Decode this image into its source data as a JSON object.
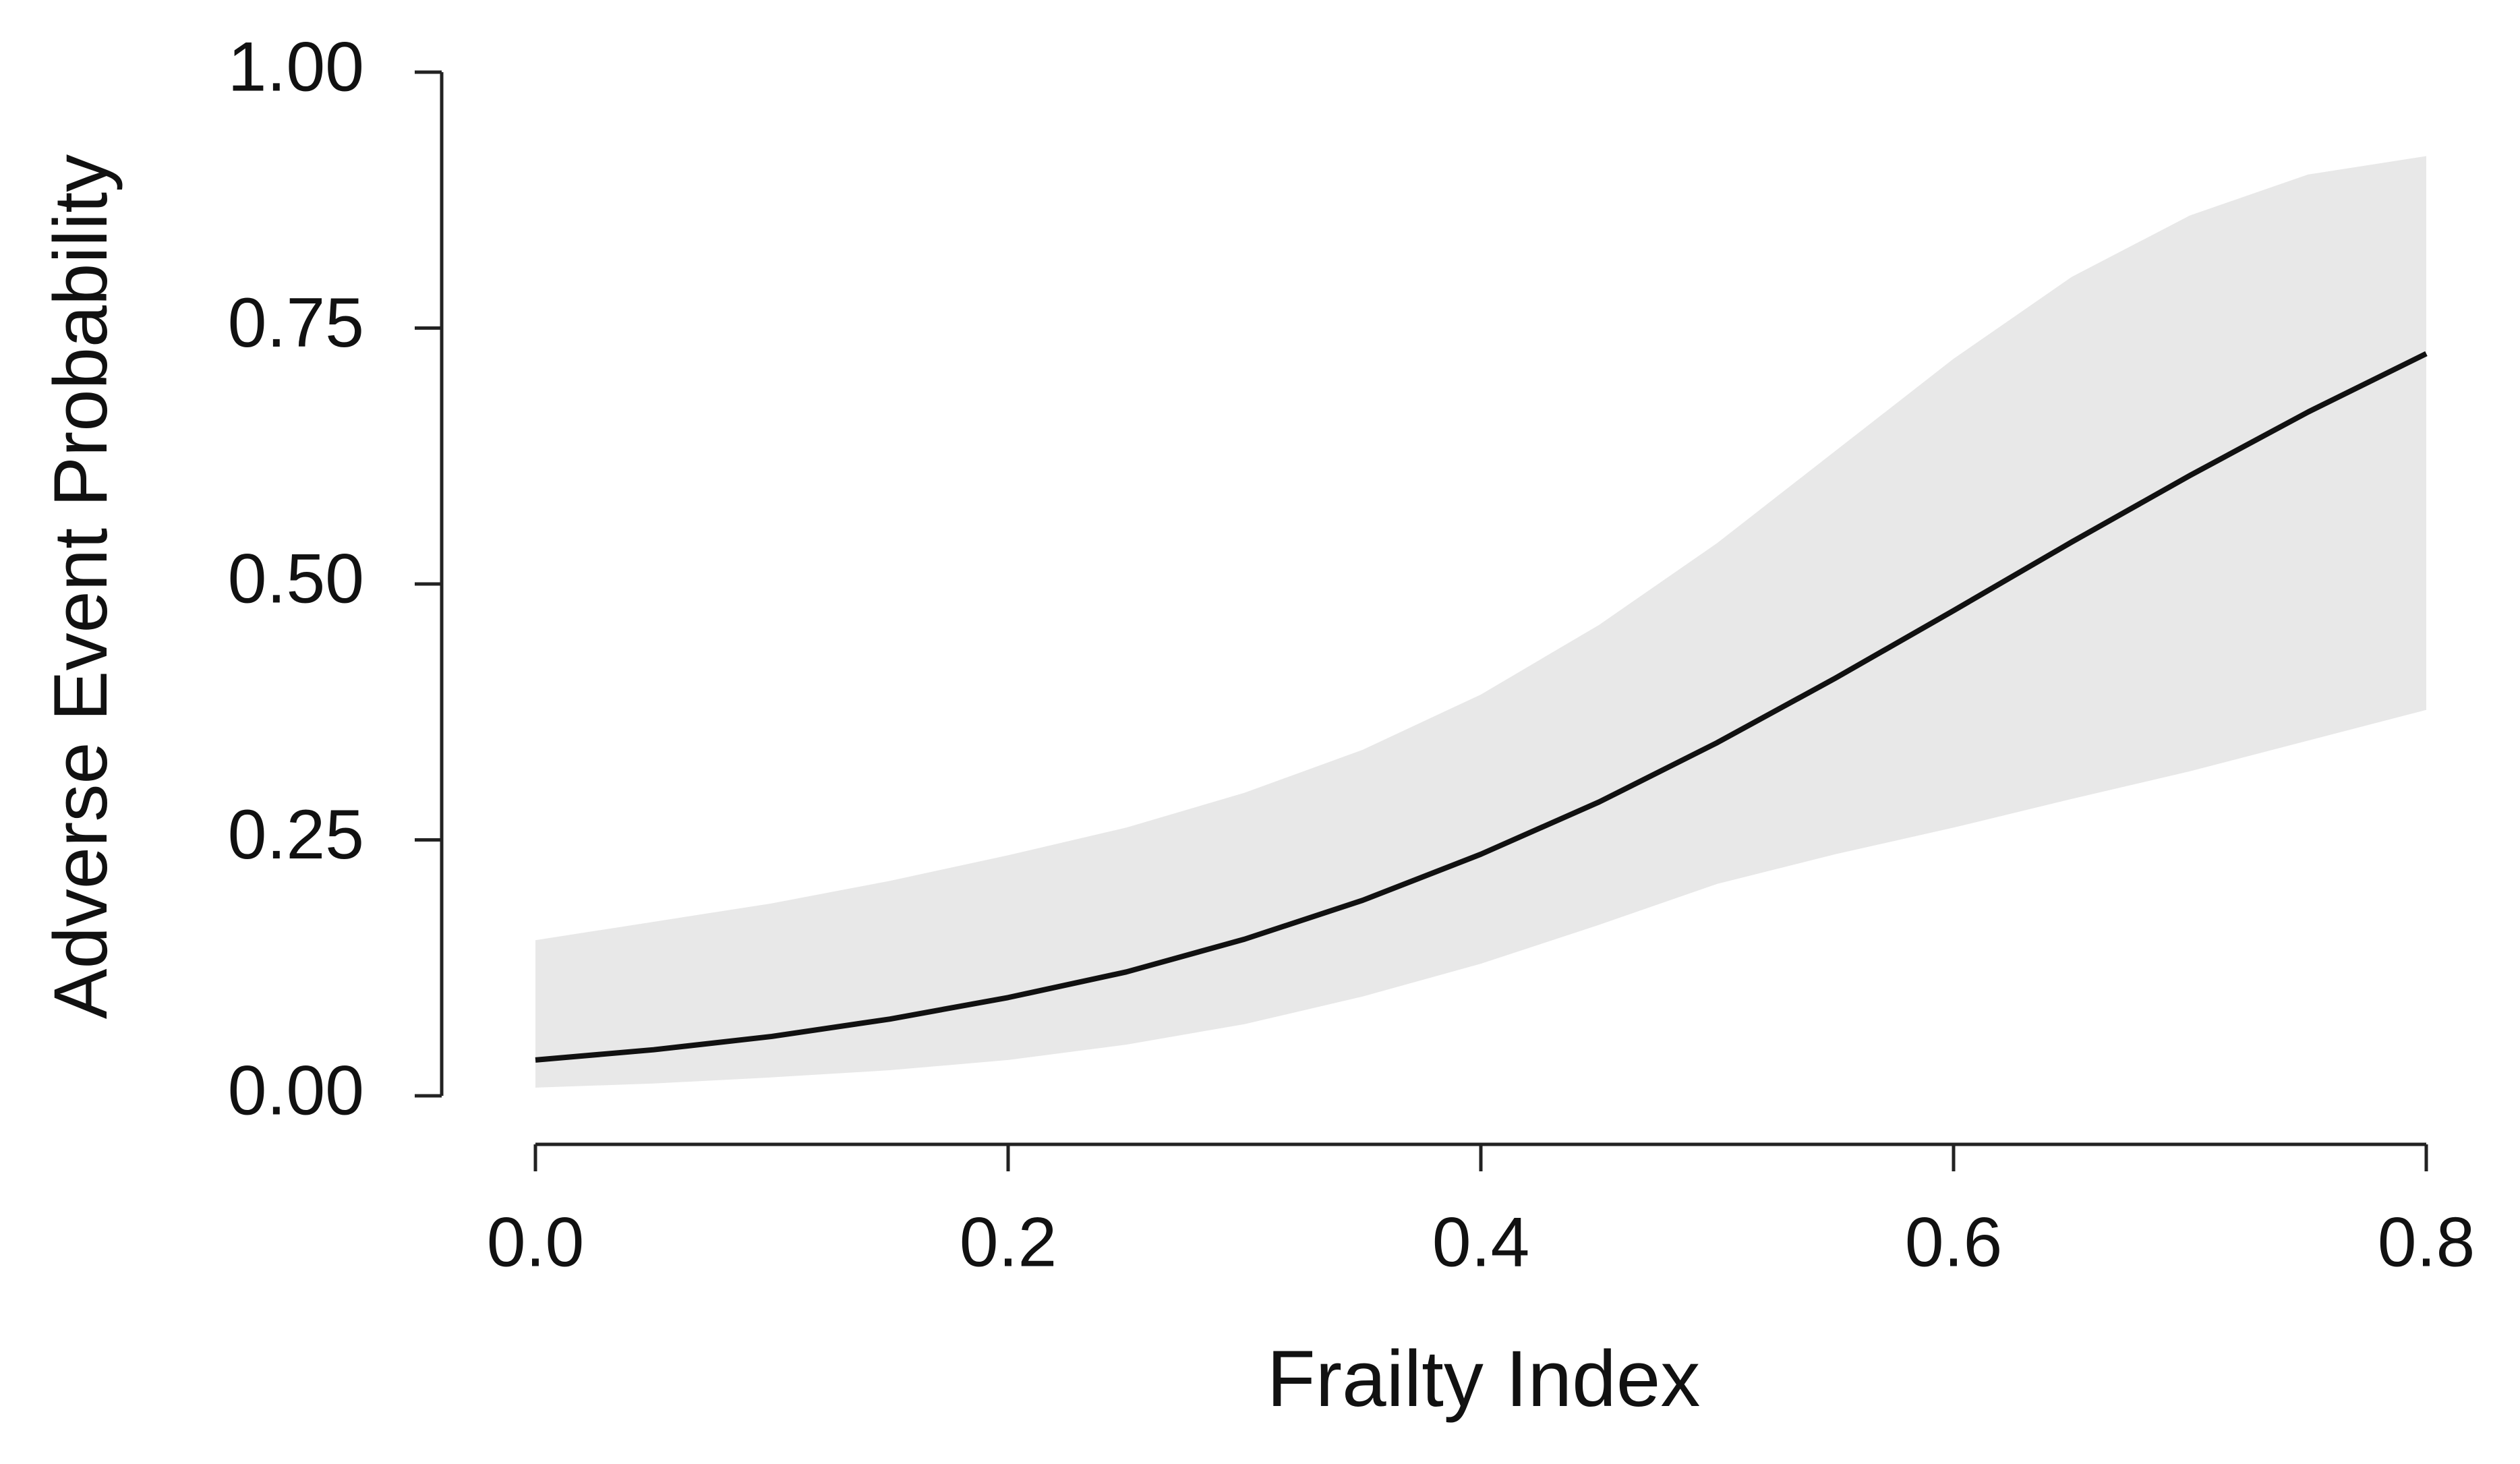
{
  "chart_data": {
    "type": "line",
    "x_label": "Frailty Index",
    "y_label": "Adverse Event Probability",
    "x": [
      0,
      0.05,
      0.1,
      0.15,
      0.2,
      0.25,
      0.3,
      0.35,
      0.4,
      0.45,
      0.5,
      0.55,
      0.6,
      0.65,
      0.7,
      0.75,
      0.8
    ],
    "series": [
      {
        "color": "#111111",
        "band_color": "#e8e8e8",
        "values": [
          0.035,
          0.045,
          0.058,
          0.075,
          0.096,
          0.121,
          0.153,
          0.191,
          0.236,
          0.287,
          0.345,
          0.408,
          0.474,
          0.541,
          0.606,
          0.668,
          0.725
        ],
        "lower": [
          0.008,
          0.012,
          0.018,
          0.025,
          0.035,
          0.05,
          0.07,
          0.097,
          0.129,
          0.167,
          0.207,
          0.236,
          0.262,
          0.29,
          0.317,
          0.347,
          0.377
        ],
        "upper": [
          0.152,
          0.17,
          0.188,
          0.21,
          0.235,
          0.262,
          0.296,
          0.338,
          0.392,
          0.46,
          0.54,
          0.63,
          0.72,
          0.8,
          0.86,
          0.9,
          0.918
        ]
      }
    ],
    "xlim": [
      0,
      0.8
    ],
    "ylim": [
      0,
      1
    ],
    "xticks": [
      {
        "value": 0,
        "label": "0.0"
      },
      0.2,
      0.4,
      0.6,
      0.8
    ],
    "yticks": [
      {
        "value": 0,
        "label": "0.00"
      },
      0.25,
      {
        "value": 0.5,
        "label": "0.50"
      },
      0.75,
      {
        "value": 1,
        "label": "1.00"
      }
    ]
  }
}
